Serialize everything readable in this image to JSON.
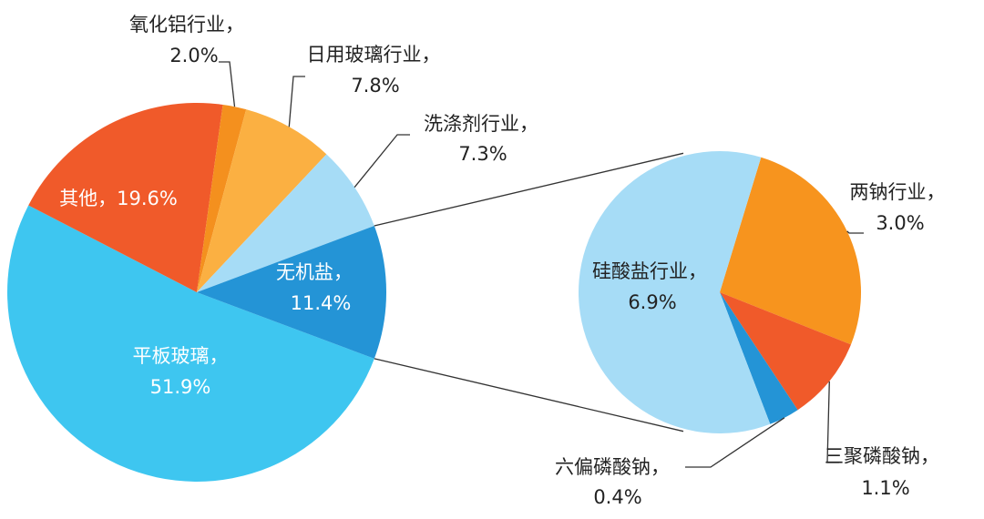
{
  "chart_data": {
    "type": "pie",
    "main": {
      "slices": [
        {
          "name": "平板玻璃",
          "value": 51.9,
          "label": "平板玻璃，",
          "pct": "51.9%",
          "color": "#3ec6f0"
        },
        {
          "name": "其他",
          "value": 19.6,
          "label": "其他，19.6%",
          "pct": "",
          "color": "#f05a2a"
        },
        {
          "name": "氧化铝行业",
          "value": 2.0,
          "label": "氧化铝行业，",
          "pct": "2.0%",
          "color": "#f4901e"
        },
        {
          "name": "日用玻璃行业",
          "value": 7.8,
          "label": "日用玻璃行业，",
          "pct": "7.8%",
          "color": "#fbb042"
        },
        {
          "name": "洗涤剂行业",
          "value": 7.3,
          "label": "洗涤剂行业，",
          "pct": "7.3%",
          "color": "#a6dcf6"
        },
        {
          "name": "无机盐",
          "value": 11.4,
          "label": "无机盐，",
          "pct": "11.4%",
          "color": "#2494d6"
        }
      ]
    },
    "breakdown": {
      "of": "无机盐",
      "slices": [
        {
          "name": "两钠行业",
          "value": 3.0,
          "label": "两钠行业，",
          "pct": "3.0%",
          "color": "#f7941e"
        },
        {
          "name": "三聚磷酸钠",
          "value": 1.1,
          "label": "三聚磷酸钠，",
          "pct": "1.1%",
          "color": "#f05a2a"
        },
        {
          "name": "六偏磷酸钠",
          "value": 0.4,
          "label": "六偏磷酸钠，",
          "pct": "0.4%",
          "color": "#2494d6"
        },
        {
          "name": "硅酸盐行业",
          "value": 6.9,
          "label": "硅酸盐行业，",
          "pct": "6.9%",
          "color": "#a6dcf6"
        }
      ]
    }
  }
}
